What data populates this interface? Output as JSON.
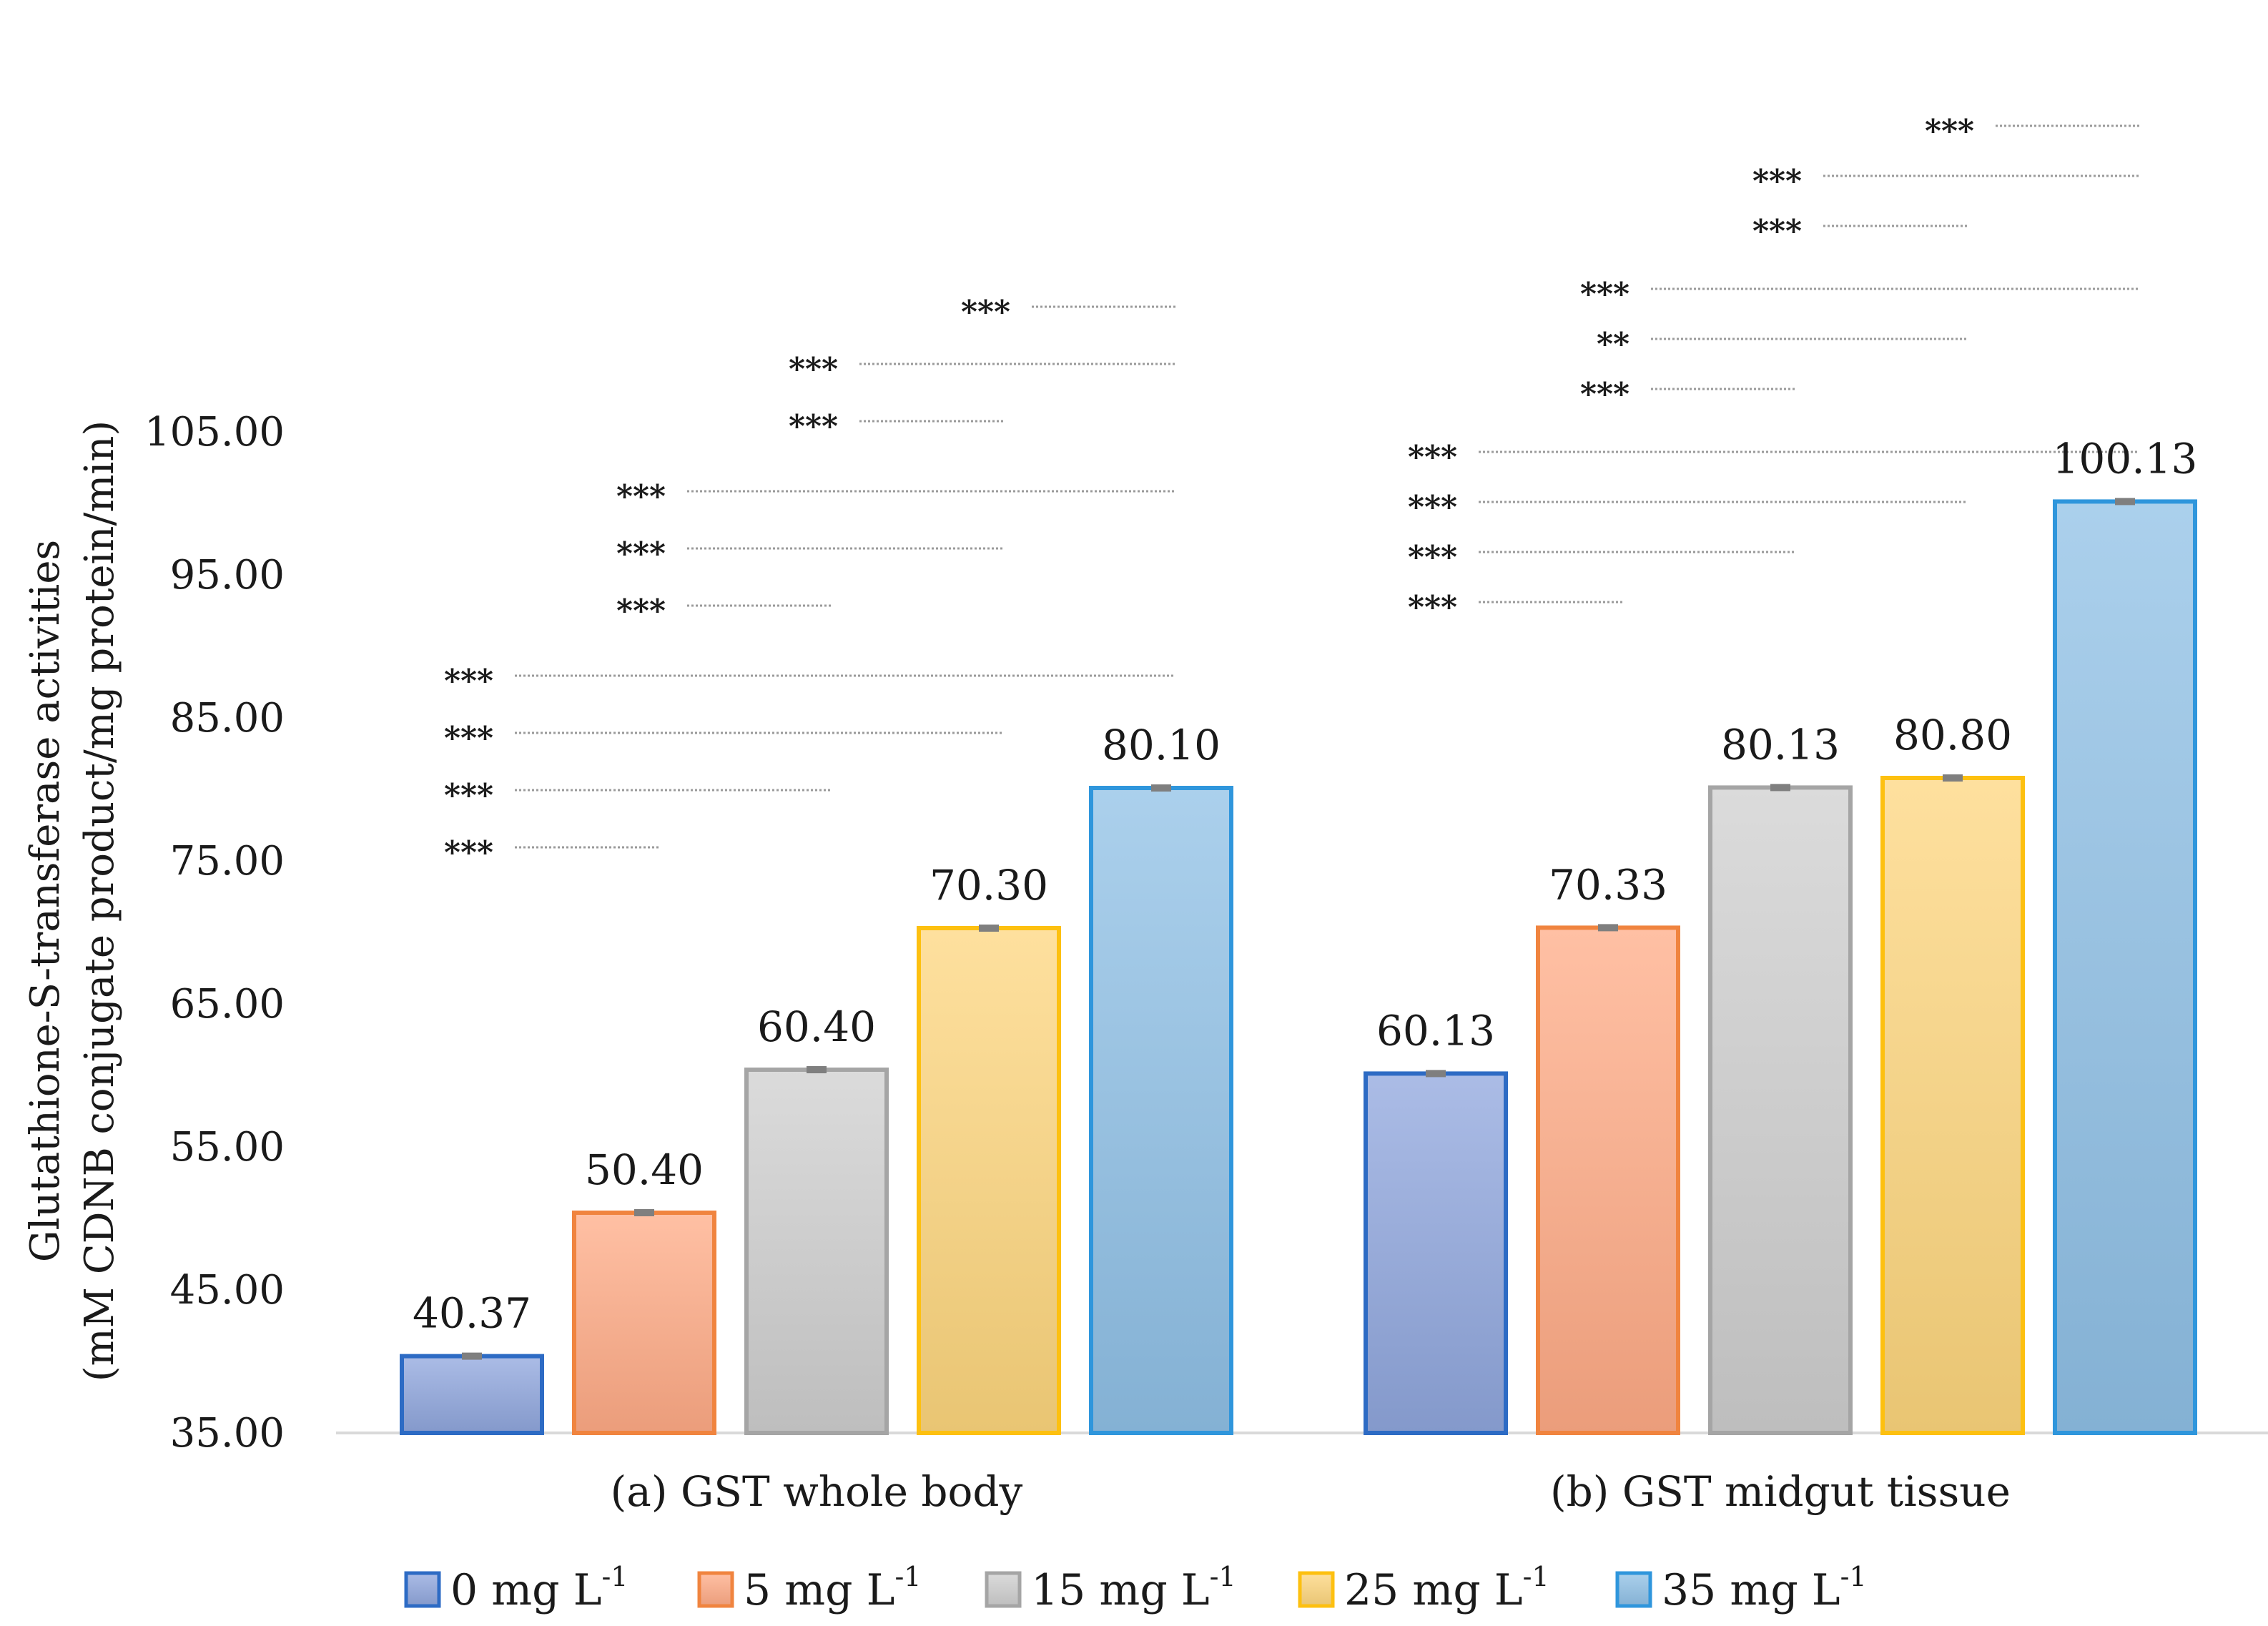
{
  "chart_data": {
    "type": "bar",
    "ylabel_line1": "Glutathione-S-transferase activities",
    "ylabel_line2": "(mM CDNB conjugate product/mg protein/min)",
    "ylim": [
      35,
      105
    ],
    "yticks": [
      "35.00",
      "45.00",
      "55.00",
      "65.00",
      "75.00",
      "85.00",
      "95.00",
      "105.00"
    ],
    "categories": [
      "(a) GST whole body",
      "(b) GST midgut tissue"
    ],
    "series": [
      {
        "name": "0 mg L-1",
        "legend_base": "0 mg L",
        "legend_sup": "-1",
        "color": "#8fa6dd",
        "border": "#2d6bc4",
        "values": [
          40.37,
          60.13
        ],
        "labels": [
          "40.37",
          "60.13"
        ]
      },
      {
        "name": "5 mg L-1",
        "legend_base": "5 mg L",
        "legend_sup": "-1",
        "color": "#ffab86",
        "border": "#f0843f",
        "values": [
          50.4,
          70.33
        ],
        "labels": [
          "50.40",
          "70.33"
        ]
      },
      {
        "name": "15 mg L-1",
        "legend_base": "15 mg L",
        "legend_sup": "-1",
        "color": "#cfcfcf",
        "border": "#a5a5a5",
        "values": [
          60.4,
          80.13
        ],
        "labels": [
          "60.40",
          "80.13"
        ]
      },
      {
        "name": "25 mg L-1",
        "legend_base": "25 mg L",
        "legend_sup": "-1",
        "color": "#fdd67d",
        "border": "#fdc010",
        "values": [
          70.3,
          80.8
        ],
        "labels": [
          "70.30",
          "80.80"
        ]
      },
      {
        "name": "35 mg L-1",
        "legend_base": "35 mg L",
        "legend_sup": "-1",
        "color": "#8fc0e6",
        "border": "#2f96dc",
        "values": [
          80.1,
          100.13
        ],
        "labels": [
          "80.10",
          "100.13"
        ]
      }
    ],
    "significance": [
      {
        "group": 0,
        "from": 0,
        "to": 1,
        "label": "***"
      },
      {
        "group": 0,
        "from": 0,
        "to": 2,
        "label": "***"
      },
      {
        "group": 0,
        "from": 0,
        "to": 3,
        "label": "***"
      },
      {
        "group": 0,
        "from": 0,
        "to": 4,
        "label": "***"
      },
      {
        "group": 0,
        "from": 1,
        "to": 2,
        "label": "***"
      },
      {
        "group": 0,
        "from": 1,
        "to": 3,
        "label": "***"
      },
      {
        "group": 0,
        "from": 1,
        "to": 4,
        "label": "***"
      },
      {
        "group": 0,
        "from": 2,
        "to": 3,
        "label": "***"
      },
      {
        "group": 0,
        "from": 2,
        "to": 4,
        "label": "***"
      },
      {
        "group": 0,
        "from": 3,
        "to": 4,
        "label": "***"
      },
      {
        "group": 1,
        "from": 0,
        "to": 1,
        "label": "***"
      },
      {
        "group": 1,
        "from": 0,
        "to": 2,
        "label": "***"
      },
      {
        "group": 1,
        "from": 0,
        "to": 3,
        "label": "***"
      },
      {
        "group": 1,
        "from": 0,
        "to": 4,
        "label": "***"
      },
      {
        "group": 1,
        "from": 1,
        "to": 2,
        "label": "***"
      },
      {
        "group": 1,
        "from": 1,
        "to": 3,
        "label": "**"
      },
      {
        "group": 1,
        "from": 1,
        "to": 4,
        "label": "***"
      },
      {
        "group": 1,
        "from": 2,
        "to": 3,
        "label": "***"
      },
      {
        "group": 1,
        "from": 2,
        "to": 4,
        "label": "***"
      },
      {
        "group": 1,
        "from": 3,
        "to": 4,
        "label": "***"
      }
    ]
  }
}
